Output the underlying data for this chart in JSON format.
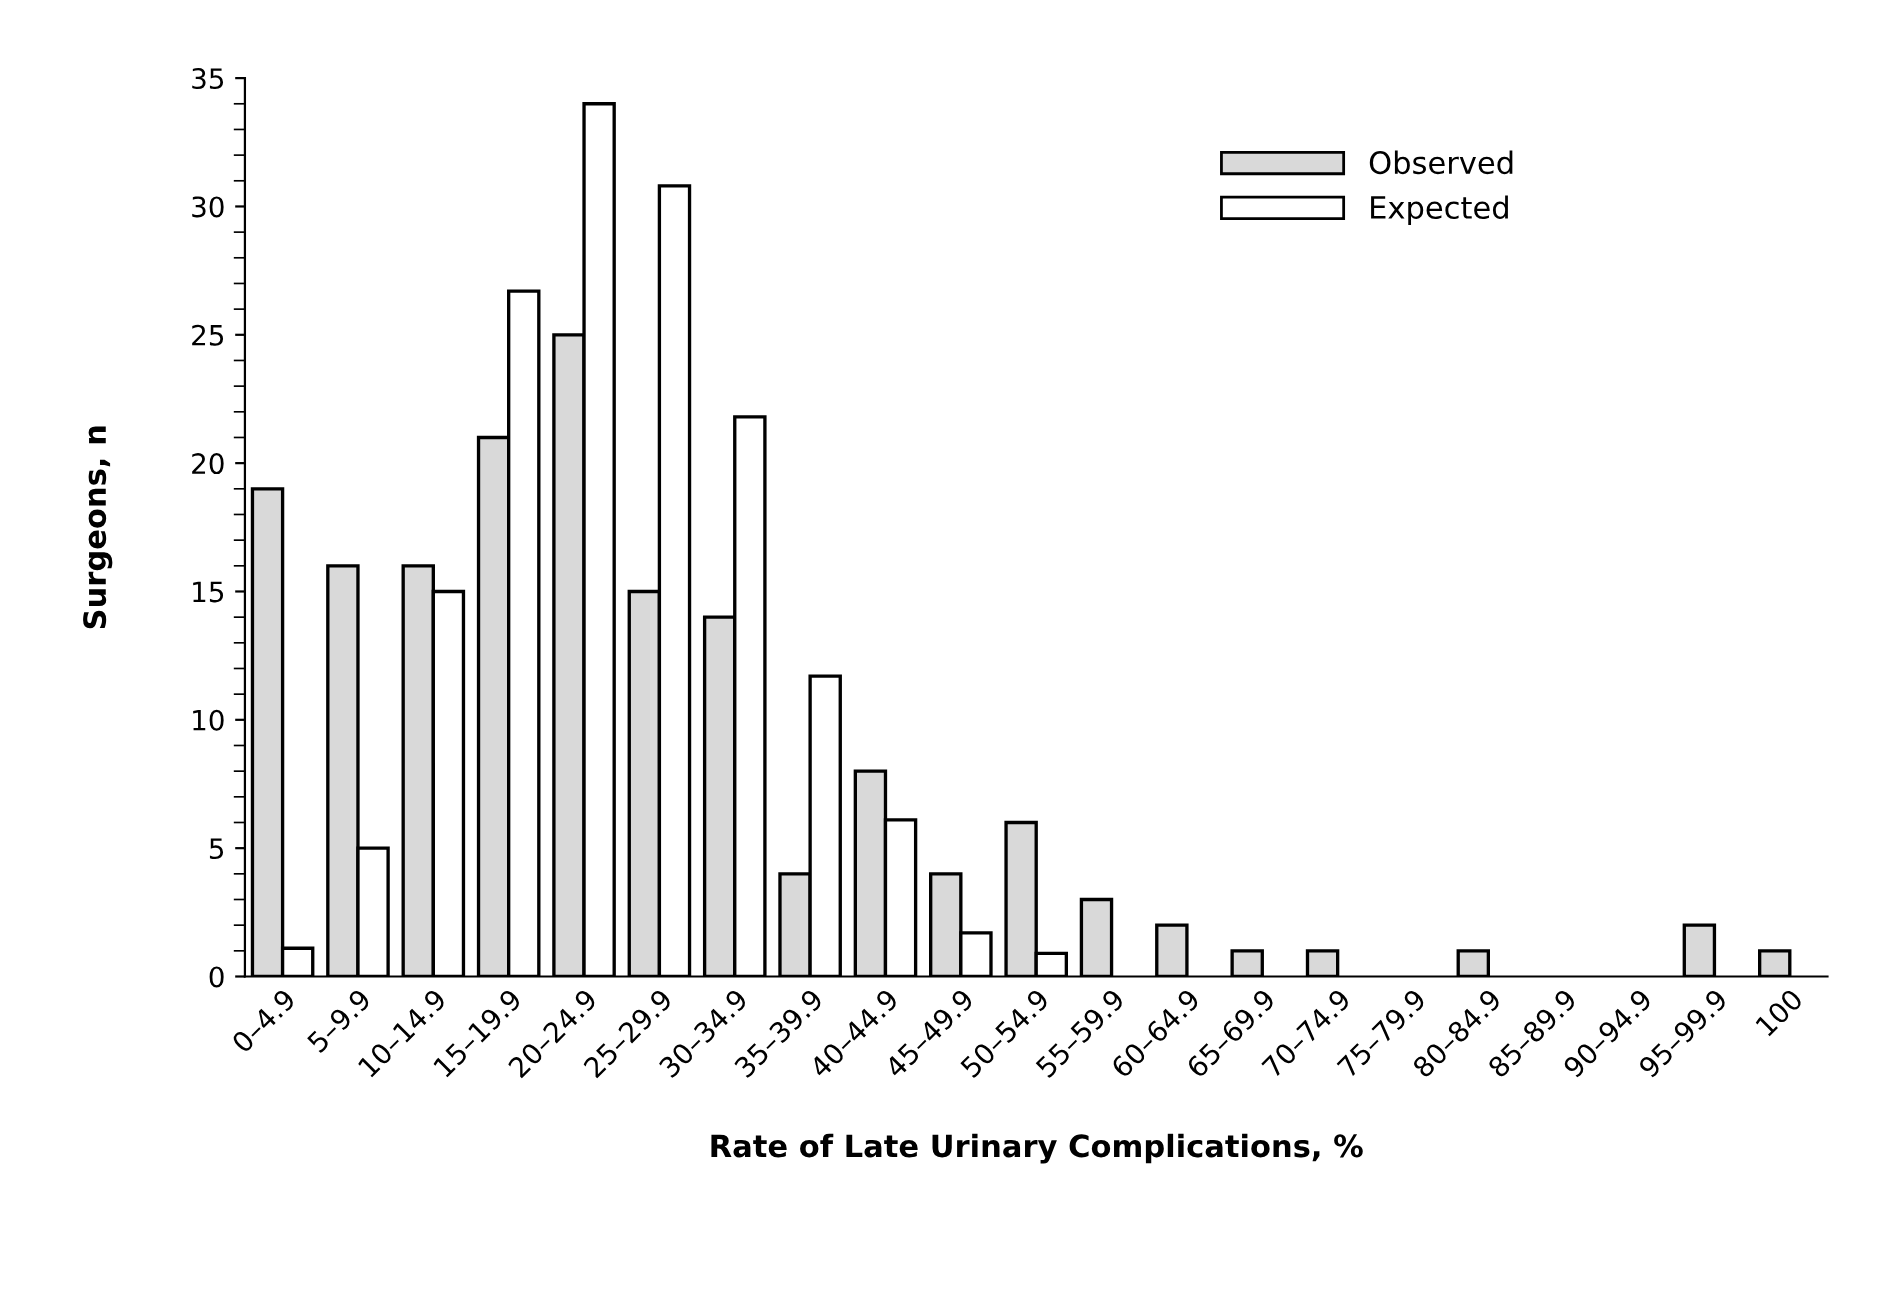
{
  "chart_data": {
    "type": "bar",
    "xlabel": "Rate of Late Urinary Complications, %",
    "ylabel": "Surgeons, n",
    "categories": [
      "0–4.9",
      "5–9.9",
      "10–14.9",
      "15–19.9",
      "20–24.9",
      "25–29.9",
      "30–34.9",
      "35–39.9",
      "40–44.9",
      "45–49.9",
      "50–54.9",
      "55–59.9",
      "60–64.9",
      "65–69.9",
      "70–74.9",
      "75–79.9",
      "80–84.9",
      "85–89.9",
      "90–94.9",
      "95–99.9",
      "100"
    ],
    "series": [
      {
        "name": "Observed",
        "color": "#d9d9d9",
        "values": [
          19,
          16,
          16,
          21,
          25,
          15,
          14,
          4,
          8,
          4,
          6,
          3,
          2,
          1,
          1,
          null,
          1,
          null,
          null,
          2,
          1
        ]
      },
      {
        "name": "Expected",
        "color": "#ffffff",
        "values": [
          1.1,
          5,
          15,
          26.7,
          34,
          30.8,
          21.8,
          11.7,
          6.1,
          1.7,
          0.9,
          null,
          null,
          null,
          null,
          null,
          null,
          null,
          null,
          null,
          null
        ]
      }
    ],
    "ylim": [
      0,
      35
    ],
    "yticks": [
      0,
      5,
      10,
      15,
      20,
      25,
      30,
      35
    ],
    "grid": false,
    "legend": "top right"
  }
}
